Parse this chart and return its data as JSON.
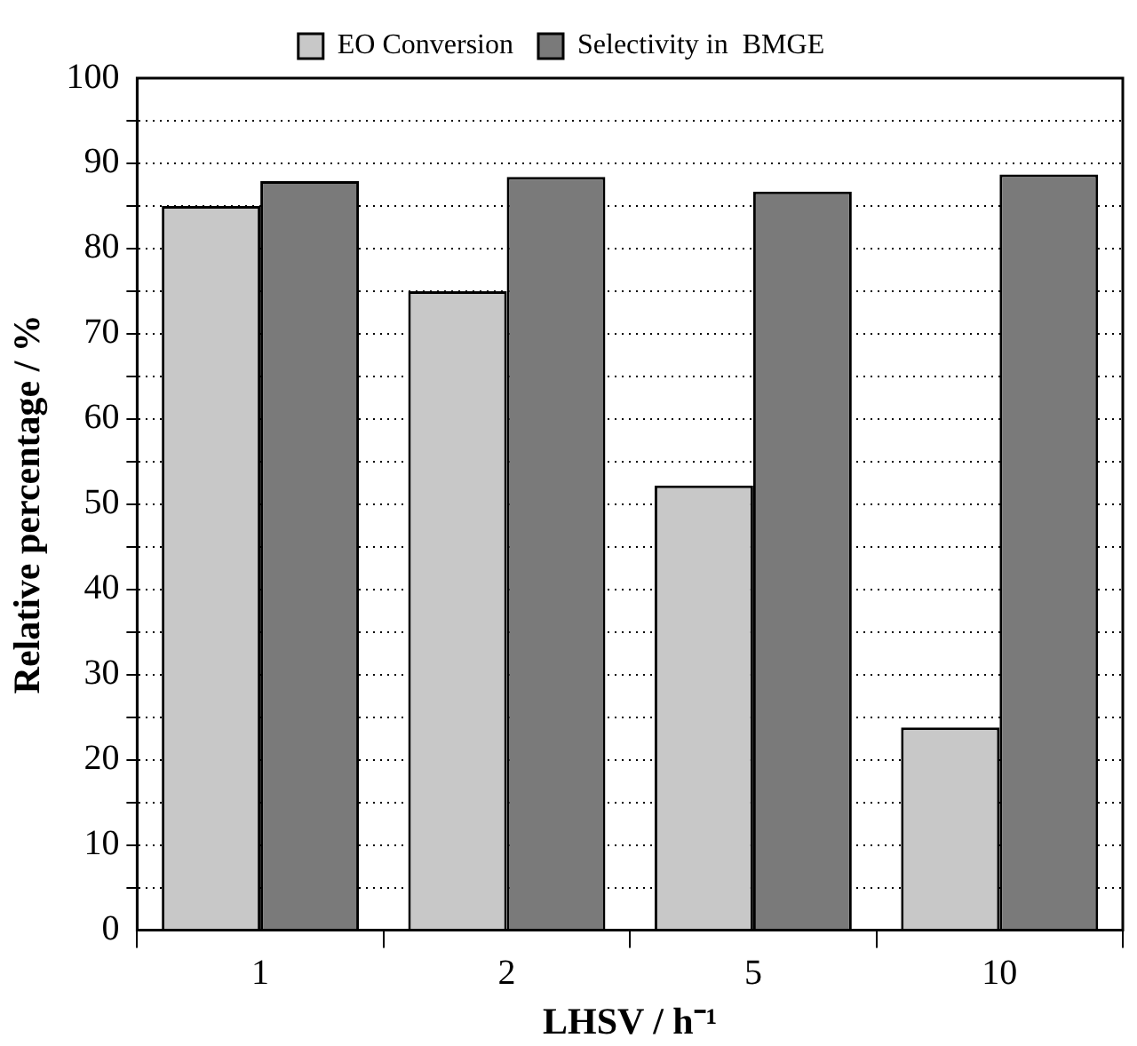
{
  "chart_data": {
    "type": "bar",
    "xlabel": "LHSV / h⁻¹",
    "ylabel": "Relative percentage / %",
    "categories": [
      "1",
      "2",
      "5",
      "10"
    ],
    "series": [
      {
        "name": "EO Conversion",
        "color": "#c8c8c8",
        "values": [
          85,
          75,
          52.2,
          23.8
        ]
      },
      {
        "name": "Selectivity in  BMGE",
        "color": "#7a7a7a",
        "values": [
          87.9,
          88.4,
          86.7,
          88.7
        ]
      }
    ],
    "ylim": [
      0,
      100
    ],
    "yticks": [
      0,
      {
        "value": 5,
        "label": null
      },
      10,
      {
        "value": 15,
        "label": null
      },
      20,
      {
        "value": 25,
        "label": null
      },
      30,
      {
        "value": 35,
        "label": null
      },
      40,
      {
        "value": 45,
        "label": null
      },
      50,
      {
        "value": 55,
        "label": null
      },
      60,
      {
        "value": 65,
        "label": null
      },
      70,
      {
        "value": 75,
        "label": null
      },
      80,
      {
        "value": 85,
        "label": null
      },
      90,
      {
        "value": 95,
        "label": null
      },
      100
    ],
    "grid": "y",
    "legend": "top"
  }
}
